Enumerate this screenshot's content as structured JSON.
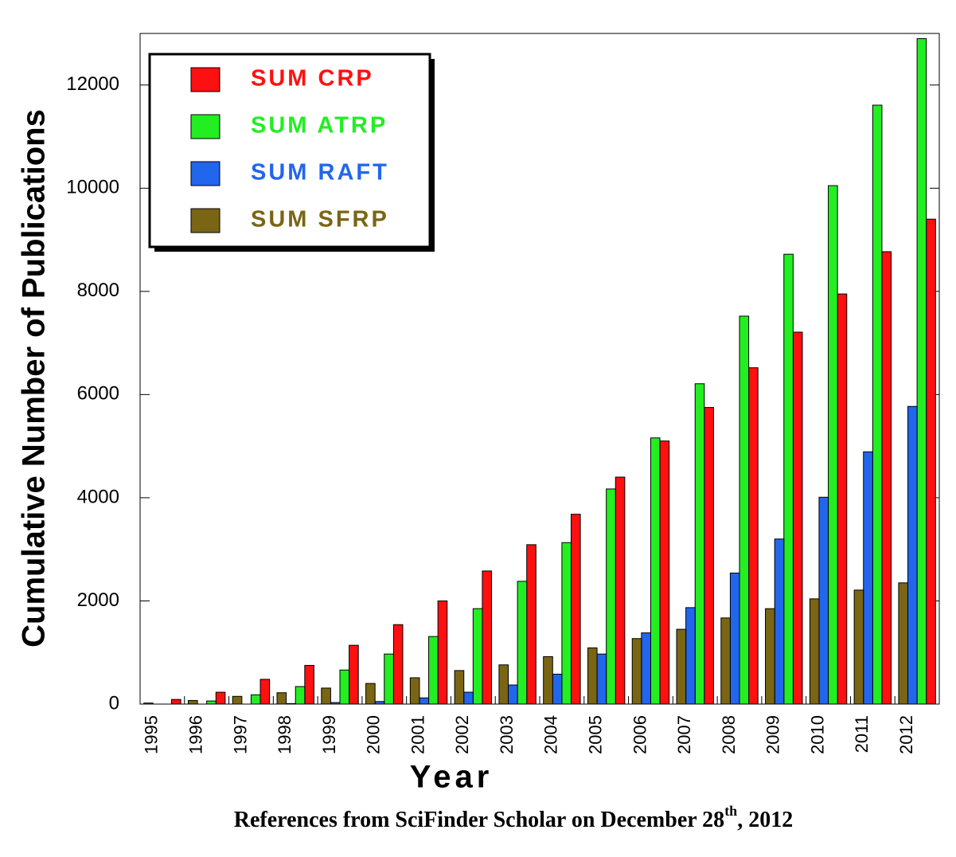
{
  "chart_data": {
    "type": "bar",
    "y_label": "Cumulative Number of Publications",
    "x_label": "Year",
    "footnote": {
      "text": "References from SciFinder Scholar on December 28",
      "sup": "th",
      "rest": ", 2012"
    },
    "categories": [
      "1995",
      "1996",
      "1997",
      "1998",
      "1999",
      "2000",
      "2001",
      "2002",
      "2003",
      "2004",
      "2005",
      "2006",
      "2007",
      "2008",
      "2009",
      "2010",
      "2011",
      "2012"
    ],
    "series": [
      {
        "name": "SUM CRP",
        "color": "#ff1010",
        "values": [
          90,
          230,
          480,
          750,
          1140,
          1540,
          2000,
          2580,
          3090,
          3680,
          4400,
          5100,
          5750,
          6520,
          7210,
          7950,
          8770,
          9400
        ]
      },
      {
        "name": "SUM ATRP",
        "color": "#22ee22",
        "values": [
          0,
          60,
          180,
          340,
          660,
          970,
          1310,
          1850,
          2380,
          3130,
          4170,
          5160,
          6210,
          7520,
          8720,
          10050,
          11610,
          12900
        ]
      },
      {
        "name": "SUM RAFT",
        "color": "#2266ee",
        "values": [
          0,
          0,
          0,
          10,
          30,
          50,
          120,
          230,
          370,
          580,
          970,
          1380,
          1870,
          2540,
          3200,
          4010,
          4890,
          5770
        ]
      },
      {
        "name": "SUM SFRP",
        "color": "#7a6514",
        "values": [
          20,
          70,
          150,
          220,
          310,
          400,
          510,
          650,
          760,
          920,
          1090,
          1270,
          1450,
          1670,
          1850,
          2040,
          2210,
          2350
        ]
      }
    ],
    "ylim": [
      0,
      13000
    ],
    "yticks": [
      0,
      2000,
      4000,
      6000,
      8000,
      10000,
      12000
    ],
    "legend": "upper left"
  }
}
